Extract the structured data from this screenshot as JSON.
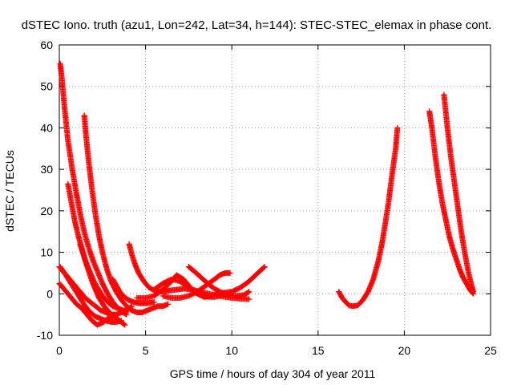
{
  "chart_data": {
    "type": "scatter",
    "title": "dSTEC Iono. truth (azu1, Lon=242, Lat=34, h=144): STEC-STEC_elemax in phase cont.",
    "xlabel": "GPS time / hours of day 304 of year 2011",
    "ylabel": "dSTEC  / TECUs",
    "xlim": [
      0,
      25
    ],
    "ylim": [
      -10,
      60
    ],
    "xticks": [
      0,
      5,
      10,
      15,
      20,
      25
    ],
    "yticks": [
      -10,
      0,
      10,
      20,
      30,
      40,
      50,
      60
    ],
    "xtick_labels": [
      "0",
      "5",
      "10",
      "15",
      "20",
      "25"
    ],
    "ytick_labels": [
      "-10",
      "0",
      "10",
      "20",
      "30",
      "40",
      "50",
      "60"
    ],
    "grid": true,
    "marker": "plus",
    "color": "#ff0000",
    "series": [
      {
        "x": [
          0.05,
          0.15,
          0.3,
          0.5,
          0.75,
          1.0,
          1.25,
          1.5,
          1.75,
          2.0,
          2.25,
          2.5,
          2.8,
          3.1,
          3.4,
          3.7,
          3.9
        ],
        "y": [
          55.5,
          52,
          45,
          37,
          30,
          24,
          18.5,
          14,
          10.5,
          7.5,
          5,
          2.5,
          0,
          -2,
          -3.5,
          -4.5,
          -5
        ]
      },
      {
        "x": [
          1.45,
          1.55,
          1.7,
          1.9,
          2.1,
          2.3,
          2.5,
          2.75,
          3.0,
          3.3,
          3.6,
          3.9,
          4.2,
          4.5,
          4.8,
          5.1,
          5.4,
          5.7,
          6.0,
          6.3
        ],
        "y": [
          43,
          38,
          32,
          25,
          19,
          14,
          10,
          6,
          3,
          0.5,
          -1.5,
          -3,
          -4,
          -4.5,
          -4.5,
          -4,
          -3.5,
          -3,
          -3,
          -2.5
        ]
      },
      {
        "x": [
          0.5,
          0.7,
          0.9,
          1.1,
          1.3,
          1.5,
          1.7,
          1.9,
          2.1,
          2.3,
          2.6,
          2.9,
          3.2,
          3.5,
          3.8
        ],
        "y": [
          26.5,
          22,
          17.5,
          14,
          11,
          8,
          5.5,
          3,
          1,
          -1,
          -3,
          -4.5,
          -5.5,
          -6.5,
          -7.5
        ]
      },
      {
        "x": [
          0,
          0.3,
          0.6,
          0.9,
          1.2,
          1.5,
          1.8,
          2.1,
          2.4,
          2.7,
          3.0,
          3.3,
          3.6
        ],
        "y": [
          6.5,
          5,
          3,
          1,
          -1,
          -3,
          -4.5,
          -5.5,
          -6,
          -6.5,
          -6.8,
          -6.8,
          -6.5
        ]
      },
      {
        "x": [
          0,
          0.2,
          0.4,
          0.6,
          0.8,
          1.0,
          1.3,
          1.6,
          1.9,
          2.2,
          2.5,
          2.8,
          3.1
        ],
        "y": [
          2.5,
          1.5,
          0.5,
          -0.5,
          -1.5,
          -2.5,
          -3.5,
          -5,
          -6.5,
          -7.5,
          -7,
          -6,
          -5.5
        ]
      },
      {
        "x": [
          0.05,
          0.3,
          0.6,
          0.9,
          1.2,
          1.5,
          1.8,
          2.1,
          2.4,
          2.7,
          3.0,
          3.3,
          3.6,
          3.9,
          4.2
        ],
        "y": [
          6.5,
          5,
          3.5,
          2,
          0.5,
          -1,
          -2,
          -3,
          -4,
          -4.5,
          -5,
          -5,
          -4.5,
          -4,
          -3
        ]
      },
      {
        "x": [
          1.2,
          1.4,
          1.6,
          1.8,
          2.0,
          2.2,
          2.5,
          2.8,
          3.1,
          3.4,
          3.7,
          4.0
        ],
        "y": [
          12,
          9.5,
          7,
          5,
          3,
          1.5,
          -0.5,
          -2,
          -3,
          -3.5,
          -4,
          -4
        ]
      },
      {
        "x": [
          3.1,
          3.3,
          3.5,
          3.7,
          4.0,
          4.3,
          4.6,
          4.9,
          5.2,
          5.5
        ],
        "y": [
          3.5,
          2,
          0.5,
          -0.5,
          -1.5,
          -2,
          -2.3,
          -2.3,
          -2.2,
          -2
        ]
      },
      {
        "x": [
          4.05,
          4.2,
          4.4,
          4.6,
          4.9,
          5.2,
          5.5,
          5.8,
          6.1,
          6.4,
          6.8,
          7.2,
          7.6,
          8.0,
          8.5,
          9.0,
          9.5,
          10.0,
          10.5,
          11.0
        ],
        "y": [
          12,
          9.5,
          7,
          5,
          3,
          1.5,
          0.8,
          0.5,
          0.6,
          0.8,
          1,
          1.2,
          1.1,
          0.7,
          0.2,
          -0.3,
          -0.7,
          -1,
          -1.2,
          -1.3
        ]
      },
      {
        "x": [
          4.5,
          5.0,
          5.5,
          6.0,
          6.5,
          6.8,
          7.2,
          7.6,
          8.0,
          8.4,
          8.8,
          9.2,
          9.6,
          10.0,
          10.5,
          11.0,
          11.5,
          11.9
        ],
        "y": [
          -1,
          -1,
          -0.5,
          1,
          3,
          4.5,
          3.5,
          1.5,
          0,
          -0.8,
          -0.5,
          0,
          0.3,
          0.5,
          1.5,
          3,
          5,
          6.5
        ]
      },
      {
        "x": [
          5.5,
          6.0,
          6.5,
          7.0,
          7.5,
          8.0,
          8.5,
          9.0,
          9.5,
          9.8
        ],
        "y": [
          1,
          2.5,
          3.5,
          3,
          1.5,
          0,
          -0.7,
          -0.8,
          -0.3,
          0
        ]
      },
      {
        "x": [
          7.5,
          7.8,
          8.2,
          8.6,
          9.0,
          9.4,
          9.8,
          10.2,
          10.7,
          11.0
        ],
        "y": [
          6.5,
          5.5,
          4,
          2.5,
          1.2,
          0.3,
          -0.3,
          -0.5,
          -0.3,
          0.5
        ]
      },
      {
        "x": [
          6.0,
          6.5,
          7.0,
          7.5,
          8.0,
          8.5,
          9.0,
          9.3,
          9.6,
          9.9
        ],
        "y": [
          -0.5,
          -1,
          -1,
          -0.5,
          0.5,
          2,
          3.5,
          4.5,
          5,
          5
        ]
      },
      {
        "x": [
          16.2,
          16.4,
          16.6,
          16.8,
          17.0,
          17.3,
          17.6,
          17.9,
          18.2,
          18.5,
          18.7,
          18.9,
          19.1,
          19.3,
          19.5,
          19.6
        ],
        "y": [
          0.5,
          -1,
          -2,
          -2.8,
          -3,
          -2.8,
          -1.5,
          0.5,
          3.5,
          8,
          12,
          17,
          22.5,
          29,
          35,
          40
        ]
      },
      {
        "x": [
          21.45,
          21.6,
          21.8,
          22.0,
          22.2,
          22.4,
          22.6,
          22.8,
          23.0,
          23.2,
          23.4,
          23.6,
          23.8,
          24.0
        ],
        "y": [
          44,
          40,
          33,
          27,
          22,
          18,
          14,
          11,
          8.5,
          6,
          4,
          2.5,
          1,
          0
        ]
      },
      {
        "x": [
          22.3,
          22.5,
          22.7,
          22.9,
          23.1,
          23.3,
          23.5,
          23.7,
          23.9,
          24.0
        ],
        "y": [
          48,
          40,
          33,
          27,
          21,
          15,
          10,
          5.5,
          2,
          0.5
        ]
      }
    ]
  }
}
